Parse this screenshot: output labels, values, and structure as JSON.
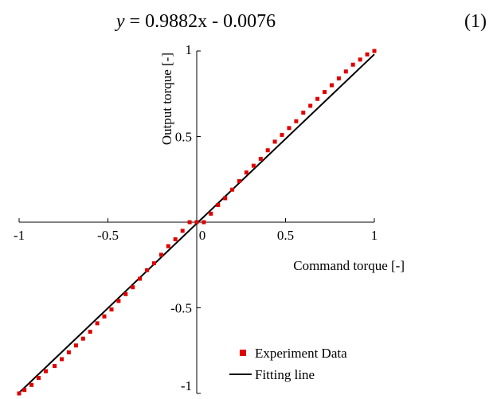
{
  "equation": {
    "lhs": "y",
    "rhs": " = 0.9882x - 0.0076",
    "number": "(1)"
  },
  "chart_data": {
    "type": "scatter",
    "title": "",
    "xlabel": "Command torque [-]",
    "ylabel": "Output torque [-]",
    "xlim": [
      -1,
      1
    ],
    "ylim": [
      -1,
      1
    ],
    "grid": false,
    "legend_position": "bottom-right",
    "x_ticks": [
      {
        "value": -1,
        "label": "-1"
      },
      {
        "value": -0.5,
        "label": "-0.5"
      },
      {
        "value": 0,
        "label": "0"
      },
      {
        "value": 0.5,
        "label": "0.5"
      },
      {
        "value": 1,
        "label": "1"
      }
    ],
    "y_ticks": [
      {
        "value": 1,
        "label": "1"
      },
      {
        "value": 0.5,
        "label": "0.5"
      },
      {
        "value": -0.5,
        "label": "-0.5"
      },
      {
        "value": -1,
        "label": "-1"
      }
    ],
    "series": [
      {
        "name": "Experiment Data",
        "kind": "scatter",
        "color": "#e00000",
        "marker": "square",
        "x": [
          -1.0,
          -0.97,
          -0.93,
          -0.89,
          -0.85,
          -0.8,
          -0.76,
          -0.72,
          -0.68,
          -0.64,
          -0.6,
          -0.56,
          -0.52,
          -0.48,
          -0.44,
          -0.4,
          -0.36,
          -0.32,
          -0.28,
          -0.24,
          -0.2,
          -0.16,
          -0.12,
          -0.08,
          -0.04,
          0.0,
          0.04,
          0.08,
          0.12,
          0.16,
          0.2,
          0.24,
          0.28,
          0.32,
          0.36,
          0.4,
          0.44,
          0.48,
          0.52,
          0.56,
          0.6,
          0.64,
          0.68,
          0.72,
          0.76,
          0.8,
          0.84,
          0.88,
          0.92,
          0.96,
          1.0
        ],
        "y": [
          -1.0,
          -0.98,
          -0.95,
          -0.91,
          -0.87,
          -0.84,
          -0.8,
          -0.76,
          -0.72,
          -0.68,
          -0.64,
          -0.59,
          -0.55,
          -0.51,
          -0.46,
          -0.42,
          -0.38,
          -0.33,
          -0.28,
          -0.24,
          -0.19,
          -0.14,
          -0.1,
          -0.05,
          0.0,
          0.0,
          0.0,
          0.05,
          0.1,
          0.14,
          0.19,
          0.24,
          0.29,
          0.33,
          0.37,
          0.42,
          0.47,
          0.51,
          0.55,
          0.59,
          0.64,
          0.68,
          0.72,
          0.76,
          0.8,
          0.84,
          0.88,
          0.92,
          0.95,
          0.98,
          1.0
        ]
      },
      {
        "name": "Fitting line",
        "kind": "line",
        "color": "#000000",
        "x": [
          -1.0,
          1.0
        ],
        "y": [
          -0.9958,
          0.9806
        ]
      }
    ]
  }
}
